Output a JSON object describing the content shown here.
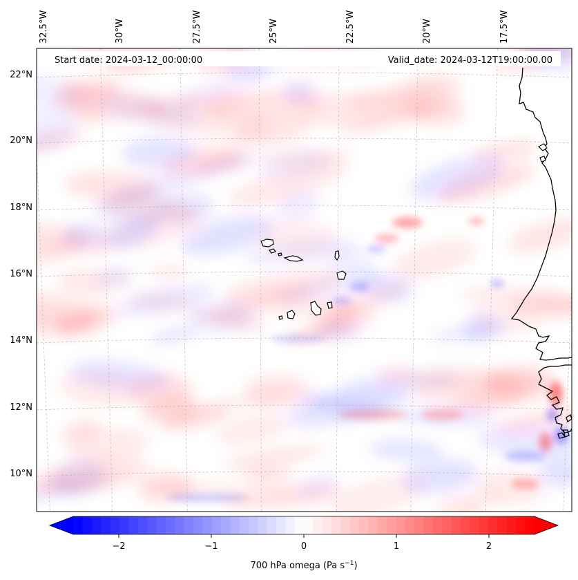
{
  "header": {
    "start_date": "Start date: 2024-03-12_00:00:00",
    "valid_date": "Valid_date: 2024-03-12T19:00:00.00"
  },
  "map": {
    "lon_labels": [
      "32.5°W",
      "30°W",
      "27.5°W",
      "25°W",
      "22.5°W",
      "20°W",
      "17.5°W"
    ],
    "lat_labels": [
      "22°N",
      "20°N",
      "18°N",
      "16°N",
      "14°N",
      "12°N",
      "10°N"
    ],
    "field": "700 hPa omega",
    "colors": {
      "neg": "#0000ff",
      "zero": "#ffffff",
      "pos": "#ff0000",
      "coast": "#000000"
    }
  },
  "colorbar": {
    "ticks": [
      "−2",
      "−1",
      "0",
      "1",
      "2"
    ],
    "label": "700 hPa omega (Pa s",
    "label_sup": "−1",
    "label_end": ")"
  }
}
